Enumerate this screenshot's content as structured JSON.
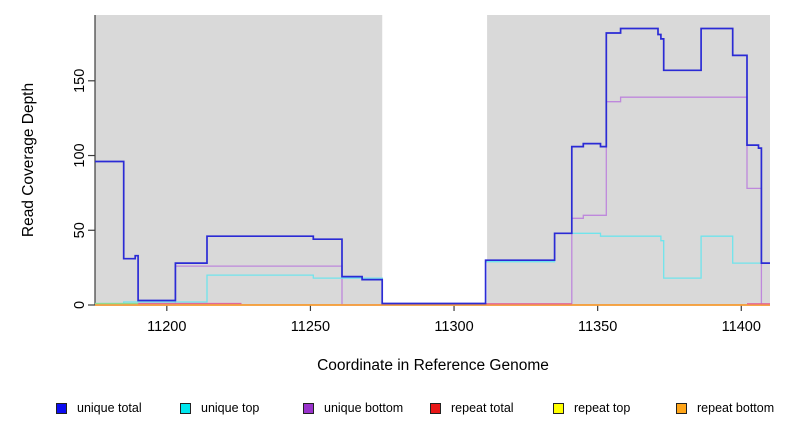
{
  "chart_data": {
    "type": "line",
    "subtype": "step-coverage-plot",
    "title": "",
    "xlabel": "Coordinate in Reference Genome",
    "ylabel": "Read Coverage Depth",
    "x_range": [
      11175,
      11410
    ],
    "y_range": [
      0,
      190
    ],
    "x_ticks": [
      "11200",
      "11250",
      "11300",
      "11350",
      "11400"
    ],
    "x_tick_values": [
      11200,
      11250,
      11300,
      11350,
      11400
    ],
    "y_ticks": [
      "0",
      "50",
      "100",
      "150"
    ],
    "y_tick_values": [
      0,
      50,
      100,
      150
    ],
    "plot_background": "#d9d9d9",
    "masked_region": {
      "from": 11275,
      "to": 11311.5,
      "color": "#ffffff"
    },
    "axis_color": "#3c3c3c",
    "series": [
      {
        "name": "repeat total",
        "color": "#de6b95",
        "z": 1,
        "width": 1.2,
        "end": 11410,
        "steps": [
          [
            11175,
            0
          ]
        ]
      },
      {
        "name": "repeat top",
        "color": "#f5e64a",
        "z": 2,
        "width": 1.2,
        "end": 11410,
        "steps": [
          [
            11175,
            0
          ]
        ]
      },
      {
        "name": "unique bottom",
        "color": "#be88dc",
        "z": 3,
        "width": 1.3,
        "end": 11410,
        "steps": [
          [
            11175,
            0
          ],
          [
            11203,
            26
          ],
          [
            11261,
            0
          ],
          [
            11341,
            58
          ],
          [
            11345,
            60
          ],
          [
            11353,
            136
          ],
          [
            11358,
            139
          ],
          [
            11402,
            78
          ],
          [
            11407,
            0
          ]
        ]
      },
      {
        "name": "unique top",
        "color": "#70e4ec",
        "z": 4,
        "width": 1.3,
        "end": 11410,
        "steps": [
          [
            11175,
            1
          ],
          [
            11185,
            2
          ],
          [
            11214,
            20
          ],
          [
            11251,
            18
          ],
          [
            11275,
            0
          ],
          [
            11311,
            29
          ],
          [
            11335,
            48
          ],
          [
            11351,
            46
          ],
          [
            11372,
            43
          ],
          [
            11373,
            18
          ],
          [
            11386,
            46
          ],
          [
            11397,
            28
          ]
        ]
      },
      {
        "name": "repeat bottom",
        "color": "#ff9e2c",
        "z": 5,
        "width": 1.6,
        "end": 11410,
        "steps": [
          [
            11175,
            0
          ]
        ]
      },
      {
        "name": "unique total",
        "color": "#2b2bd5",
        "z": 7,
        "width": 1.7,
        "end": 11410,
        "steps": [
          [
            11175,
            96
          ],
          [
            11185,
            31
          ],
          [
            11189,
            33
          ],
          [
            11190,
            3
          ],
          [
            11203,
            28
          ],
          [
            11214,
            46
          ],
          [
            11251,
            44
          ],
          [
            11261,
            19
          ],
          [
            11268,
            17
          ],
          [
            11275,
            1
          ],
          [
            11311,
            30
          ],
          [
            11335,
            48
          ],
          [
            11341,
            106
          ],
          [
            11345,
            108
          ],
          [
            11351,
            106
          ],
          [
            11353,
            182
          ],
          [
            11358,
            185
          ],
          [
            11371,
            181
          ],
          [
            11372,
            178
          ],
          [
            11373,
            157
          ],
          [
            11386,
            185
          ],
          [
            11397,
            167
          ],
          [
            11402,
            107
          ],
          [
            11406,
            105
          ],
          [
            11407,
            28
          ]
        ]
      }
    ],
    "overlap_artifacts": [
      {
        "desc": "pale-green overlap line",
        "color": "#8fd98f",
        "from": 11175,
        "to": 11190,
        "value": 1,
        "z": 6
      },
      {
        "desc": "pink overlap line",
        "color": "#e0689a",
        "from": 11190,
        "to": 11226,
        "value": 1,
        "z": 6
      },
      {
        "desc": "pink overlap line",
        "color": "#e0689a",
        "from": 11275,
        "to": 11341,
        "value": 0.8,
        "z": 6
      },
      {
        "desc": "pink overlap line",
        "color": "#e0689a",
        "from": 11402,
        "to": 11410,
        "value": 0.8,
        "z": 6
      }
    ]
  },
  "legend": {
    "items": [
      {
        "label": "unique total",
        "color": "#0d0df2"
      },
      {
        "label": "unique top",
        "color": "#00e6ee"
      },
      {
        "label": "unique bottom",
        "color": "#9933cc"
      },
      {
        "label": "repeat total",
        "color": "#e81717"
      },
      {
        "label": "repeat top",
        "color": "#ffff00"
      },
      {
        "label": "repeat bottom",
        "color": "#ffa519"
      }
    ]
  }
}
